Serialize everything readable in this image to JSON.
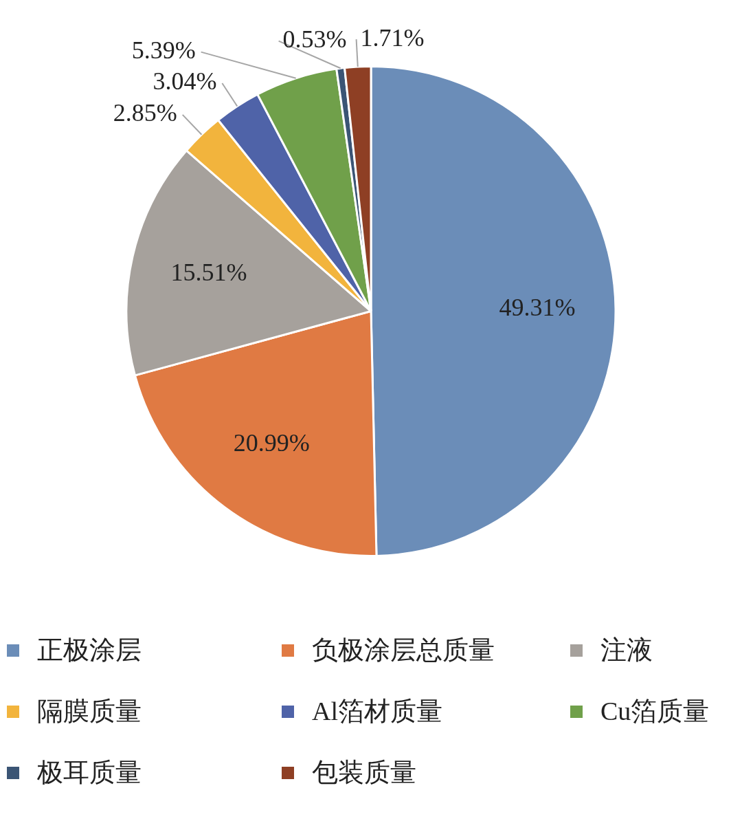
{
  "chart_data": {
    "type": "pie",
    "categories": [
      "正极涂层",
      "负极涂层总质量",
      "注液",
      "隔膜质量",
      "Al箔材质量",
      "Cu箔质量",
      "极耳质量",
      "包装质量"
    ],
    "values": [
      49.31,
      20.99,
      15.51,
      2.85,
      3.04,
      5.39,
      0.53,
      1.71
    ],
    "colors": [
      "#6b8db8",
      "#e07a43",
      "#a6a19c",
      "#f2b43d",
      "#4f63a8",
      "#70a04a",
      "#3b5575",
      "#8e3f24"
    ],
    "value_labels": [
      "49.31%",
      "20.99%",
      "15.51%",
      "2.85%",
      "3.04%",
      "5.39%",
      "0.53%",
      "1.71%"
    ],
    "legend": "bottom"
  }
}
